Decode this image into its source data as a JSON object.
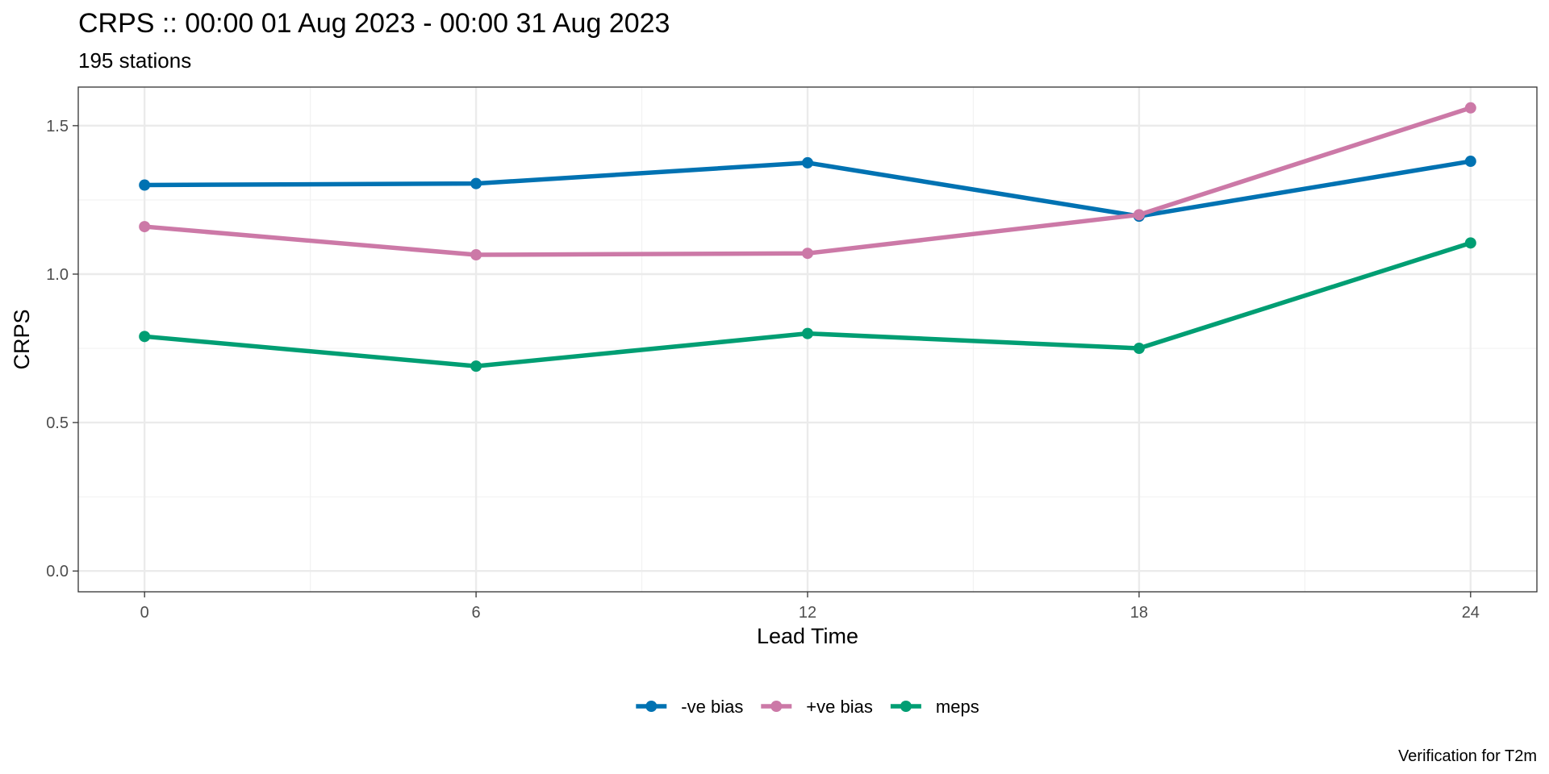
{
  "chart_data": {
    "type": "line",
    "title": "CRPS :: 00:00 01 Aug 2023 - 00:00 31 Aug 2023",
    "subtitle": "195 stations",
    "xlabel": "Lead Time",
    "ylabel": "CRPS",
    "caption": "Verification for T2m",
    "x": [
      0,
      6,
      12,
      18,
      24
    ],
    "xlim": [
      -1.2,
      25.2
    ],
    "ylim": [
      -0.07,
      1.63
    ],
    "x_ticks": [
      0,
      6,
      12,
      18,
      24
    ],
    "y_ticks": [
      0.0,
      0.5,
      1.0,
      1.5
    ],
    "y_tick_labels": [
      "0.0",
      "0.5",
      "1.0",
      "1.5"
    ],
    "grid": true,
    "legend_position": "bottom",
    "series": [
      {
        "name": "-ve bias",
        "color": "#0072B2",
        "values": [
          1.3,
          1.305,
          1.375,
          1.195,
          1.38
        ]
      },
      {
        "name": "+ve bias",
        "color": "#CC79A7",
        "values": [
          1.16,
          1.065,
          1.07,
          1.2,
          1.56
        ]
      },
      {
        "name": "meps",
        "color": "#009E73",
        "values": [
          0.79,
          0.69,
          0.8,
          0.75,
          1.105
        ]
      }
    ]
  }
}
